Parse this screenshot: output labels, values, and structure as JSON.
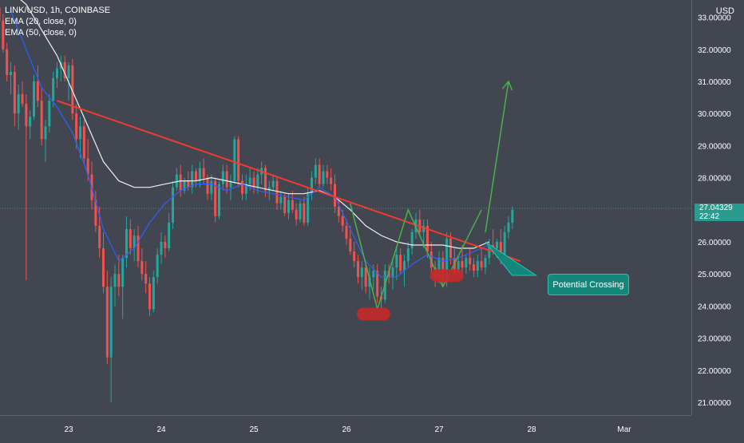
{
  "header": {
    "symbol": "LINK/USD, 1h, COINBASE",
    "ema20": "EMA (20, close, 0)",
    "ema50": "EMA (50, close, 0)",
    "currency": "USD"
  },
  "price_tag": {
    "price": "27.04329",
    "countdown": "22:42"
  },
  "callout": {
    "label": "Potential Crossing"
  },
  "colors": {
    "background": "#414650",
    "up_candle": "#26a69a",
    "down_candle": "#ef5350",
    "trendline": "#f23b2f",
    "pattern": "#4caf50",
    "ema_fast": "#2962ff",
    "ema_slow": "#f0f0f0",
    "support_marker": "#c62828",
    "callout_bg": "#15877a"
  },
  "chart_data": {
    "type": "candlestick",
    "x_labels": [
      "23",
      "24",
      "25",
      "26",
      "27",
      "28",
      "Mar"
    ],
    "x_label_positions": [
      0,
      24,
      48,
      72,
      96,
      120,
      144
    ],
    "ylim": [
      20.8,
      33.7
    ],
    "y_ticks": [
      "21.00000",
      "22.00000",
      "23.00000",
      "24.00000",
      "25.00000",
      "26.00000",
      "27.00000",
      "28.00000",
      "29.00000",
      "30.00000",
      "31.00000",
      "32.00000",
      "33.00000"
    ],
    "y_tick_values": [
      21,
      22,
      23,
      24,
      25,
      26,
      27,
      28,
      29,
      30,
      31,
      32,
      33
    ],
    "last_price": 27.04329,
    "x_start": -18,
    "candles": [
      [
        33.3,
        33.6,
        32.8,
        32.9
      ],
      [
        32.9,
        33.1,
        31.9,
        32.0
      ],
      [
        32.0,
        32.2,
        31.0,
        31.2
      ],
      [
        31.2,
        31.6,
        30.6,
        31.3
      ],
      [
        31.3,
        31.5,
        29.6,
        30.0
      ],
      [
        30.0,
        30.9,
        29.5,
        30.6
      ],
      [
        30.6,
        31.0,
        30.2,
        30.3
      ],
      [
        30.3,
        30.6,
        24.8,
        29.6
      ],
      [
        29.6,
        30.1,
        29.2,
        29.9
      ],
      [
        29.9,
        31.2,
        29.8,
        31.0
      ],
      [
        31.0,
        31.5,
        30.2,
        30.4
      ],
      [
        30.4,
        30.8,
        29.0,
        29.2
      ],
      [
        29.2,
        29.8,
        28.5,
        29.6
      ],
      [
        29.6,
        30.6,
        29.4,
        30.4
      ],
      [
        30.4,
        31.3,
        30.2,
        31.1
      ],
      [
        31.1,
        31.6,
        30.8,
        31.4
      ],
      [
        31.4,
        31.8,
        31.0,
        31.6
      ],
      [
        31.6,
        31.8,
        31.0,
        31.1
      ],
      [
        31.1,
        31.6,
        30.4,
        31.5
      ],
      [
        31.5,
        31.7,
        29.8,
        30.0
      ],
      [
        30.0,
        30.3,
        28.9,
        29.2
      ],
      [
        29.2,
        29.9,
        28.6,
        29.6
      ],
      [
        29.6,
        29.8,
        28.4,
        28.6
      ],
      [
        28.6,
        29.2,
        27.9,
        28.1
      ],
      [
        28.1,
        28.5,
        27.0,
        27.3
      ],
      [
        27.3,
        27.6,
        26.3,
        26.5
      ],
      [
        26.5,
        27.1,
        25.5,
        25.8
      ],
      [
        25.8,
        26.3,
        24.4,
        24.6
      ],
      [
        24.6,
        25.1,
        22.2,
        22.4
      ],
      [
        22.4,
        24.9,
        21.0,
        24.6
      ],
      [
        24.6,
        25.3,
        24.0,
        25.0
      ],
      [
        25.0,
        25.6,
        24.3,
        24.6
      ],
      [
        24.6,
        25.6,
        23.6,
        25.5
      ],
      [
        25.5,
        26.8,
        25.2,
        26.4
      ],
      [
        26.4,
        26.7,
        25.6,
        25.8
      ],
      [
        25.8,
        26.4,
        25.4,
        26.2
      ],
      [
        26.2,
        26.5,
        25.2,
        25.4
      ],
      [
        25.4,
        25.8,
        24.8,
        25.0
      ],
      [
        25.0,
        25.4,
        24.4,
        24.7
      ],
      [
        24.7,
        24.9,
        23.7,
        23.9
      ],
      [
        23.9,
        25.1,
        23.8,
        24.9
      ],
      [
        24.9,
        25.8,
        24.7,
        25.6
      ],
      [
        25.6,
        26.3,
        25.3,
        26.0
      ],
      [
        26.0,
        26.2,
        25.5,
        25.8
      ],
      [
        25.8,
        26.9,
        25.7,
        26.6
      ],
      [
        26.6,
        27.9,
        26.4,
        27.7
      ],
      [
        27.7,
        28.3,
        27.6,
        28.1
      ],
      [
        28.1,
        28.4,
        27.4,
        27.6
      ],
      [
        27.6,
        28.0,
        27.5,
        27.9
      ],
      [
        27.9,
        28.2,
        27.6,
        27.7
      ],
      [
        27.7,
        28.4,
        27.5,
        28.2
      ],
      [
        28.2,
        28.3,
        27.7,
        27.9
      ],
      [
        27.9,
        28.5,
        27.7,
        28.3
      ],
      [
        28.3,
        28.6,
        27.8,
        28.0
      ],
      [
        28.0,
        28.1,
        27.3,
        27.5
      ],
      [
        27.5,
        28.1,
        27.3,
        27.9
      ],
      [
        27.9,
        28.0,
        26.6,
        26.8
      ],
      [
        26.8,
        27.9,
        26.7,
        27.8
      ],
      [
        27.8,
        28.4,
        27.6,
        28.2
      ],
      [
        28.2,
        28.4,
        27.5,
        27.7
      ],
      [
        27.7,
        28.1,
        27.3,
        27.9
      ],
      [
        27.9,
        29.3,
        27.8,
        29.2
      ],
      [
        29.2,
        29.3,
        27.7,
        27.9
      ],
      [
        27.9,
        28.1,
        27.3,
        27.5
      ],
      [
        27.5,
        28.1,
        27.3,
        27.8
      ],
      [
        27.8,
        28.3,
        27.6,
        28.0
      ],
      [
        28.0,
        28.2,
        27.5,
        27.7
      ],
      [
        27.7,
        28.3,
        27.5,
        28.1
      ],
      [
        28.1,
        28.5,
        27.8,
        28.3
      ],
      [
        28.3,
        28.4,
        27.4,
        27.6
      ],
      [
        27.6,
        27.9,
        27.3,
        27.7
      ],
      [
        27.7,
        28.1,
        27.6,
        27.9
      ],
      [
        27.9,
        28.0,
        27.0,
        27.2
      ],
      [
        27.2,
        27.6,
        27.0,
        27.4
      ],
      [
        27.4,
        27.5,
        26.8,
        26.9
      ],
      [
        26.9,
        27.5,
        26.7,
        27.3
      ],
      [
        27.3,
        27.6,
        26.9,
        27.0
      ],
      [
        27.0,
        27.2,
        26.5,
        26.7
      ],
      [
        26.7,
        27.3,
        26.6,
        27.2
      ],
      [
        27.2,
        27.4,
        26.5,
        26.6
      ],
      [
        26.6,
        27.7,
        26.5,
        27.5
      ],
      [
        27.5,
        28.2,
        27.3,
        28.0
      ],
      [
        28.0,
        28.6,
        27.8,
        28.4
      ],
      [
        28.4,
        28.6,
        27.7,
        27.8
      ],
      [
        27.8,
        28.4,
        27.7,
        28.2
      ],
      [
        28.2,
        28.4,
        27.8,
        28.0
      ],
      [
        28.0,
        28.3,
        27.6,
        27.8
      ],
      [
        27.8,
        28.1,
        26.9,
        27.1
      ],
      [
        27.1,
        27.3,
        26.6,
        26.8
      ],
      [
        26.8,
        27.0,
        26.3,
        26.5
      ],
      [
        26.5,
        26.7,
        25.9,
        26.1
      ],
      [
        26.1,
        26.5,
        25.6,
        25.7
      ],
      [
        25.7,
        26.0,
        25.2,
        25.4
      ],
      [
        25.4,
        25.6,
        24.7,
        24.9
      ],
      [
        24.9,
        25.4,
        24.5,
        25.2
      ],
      [
        25.2,
        25.3,
        24.4,
        24.6
      ],
      [
        24.6,
        25.2,
        24.2,
        24.9
      ],
      [
        24.9,
        25.3,
        24.5,
        25.1
      ],
      [
        25.1,
        25.3,
        24.1,
        24.3
      ],
      [
        24.3,
        24.6,
        23.9,
        24.2
      ],
      [
        24.2,
        25.3,
        24.1,
        25.1
      ],
      [
        25.1,
        25.3,
        24.7,
        24.9
      ],
      [
        24.9,
        25.4,
        24.5,
        25.2
      ],
      [
        25.2,
        25.8,
        24.8,
        25.6
      ],
      [
        25.6,
        25.8,
        25.0,
        25.1
      ],
      [
        25.1,
        25.6,
        24.6,
        25.4
      ],
      [
        25.4,
        26.0,
        25.2,
        25.8
      ],
      [
        25.8,
        26.4,
        25.6,
        26.3
      ],
      [
        26.3,
        26.9,
        26.1,
        26.7
      ],
      [
        26.7,
        27.0,
        26.2,
        26.3
      ],
      [
        26.3,
        26.7,
        25.8,
        26.5
      ],
      [
        26.5,
        26.7,
        25.5,
        25.7
      ],
      [
        25.7,
        26.0,
        25.0,
        25.2
      ],
      [
        25.2,
        25.4,
        24.6,
        24.9
      ],
      [
        24.9,
        25.7,
        24.7,
        25.5
      ],
      [
        25.5,
        25.7,
        24.6,
        24.8
      ],
      [
        24.8,
        26.3,
        24.6,
        26.1
      ],
      [
        26.1,
        26.3,
        25.3,
        25.5
      ],
      [
        25.5,
        25.8,
        24.8,
        25.0
      ],
      [
        25.0,
        25.6,
        24.9,
        25.4
      ],
      [
        25.4,
        25.9,
        25.0,
        25.2
      ],
      [
        25.2,
        25.6,
        25.0,
        25.5
      ],
      [
        25.5,
        25.8,
        25.1,
        25.3
      ],
      [
        25.3,
        25.5,
        24.9,
        25.1
      ],
      [
        25.1,
        25.6,
        24.9,
        25.4
      ],
      [
        25.4,
        25.8,
        25.1,
        25.2
      ],
      [
        25.2,
        25.6,
        25.0,
        25.5
      ],
      [
        25.5,
        26.1,
        25.3,
        25.9
      ],
      [
        25.9,
        26.4,
        25.6,
        25.8
      ],
      [
        25.8,
        26.1,
        25.5,
        26.0
      ],
      [
        26.0,
        26.4,
        25.3,
        25.5
      ],
      [
        25.5,
        26.5,
        25.3,
        26.3
      ],
      [
        26.3,
        26.8,
        26.1,
        26.6
      ],
      [
        26.6,
        27.1,
        26.4,
        27.0
      ]
    ],
    "ema20": [
      [
        -15,
        33.2
      ],
      [
        -11,
        32.0
      ],
      [
        -7,
        30.8
      ],
      [
        -3,
        30.2
      ],
      [
        1,
        29.4
      ],
      [
        5,
        28.1
      ],
      [
        9,
        26.4
      ],
      [
        13,
        25.4
      ],
      [
        17,
        25.8
      ],
      [
        21,
        26.6
      ],
      [
        25,
        27.2
      ],
      [
        29,
        27.6
      ],
      [
        33,
        27.8
      ],
      [
        37,
        27.8
      ],
      [
        41,
        27.6
      ],
      [
        45,
        27.8
      ],
      [
        49,
        27.6
      ],
      [
        53,
        27.5
      ],
      [
        57,
        27.4
      ],
      [
        61,
        27.3
      ],
      [
        65,
        27.7
      ],
      [
        69,
        27.4
      ],
      [
        73,
        26.4
      ],
      [
        77,
        25.4
      ],
      [
        81,
        24.9
      ],
      [
        85,
        24.9
      ],
      [
        89,
        25.3
      ],
      [
        93,
        25.6
      ],
      [
        97,
        25.4
      ],
      [
        101,
        25.5
      ],
      [
        105,
        25.7
      ],
      [
        109,
        25.9
      ]
    ],
    "ema50": [
      [
        -15,
        33.8
      ],
      [
        -11,
        33.4
      ],
      [
        -7,
        32.6
      ],
      [
        -3,
        31.8
      ],
      [
        1,
        30.7
      ],
      [
        5,
        29.6
      ],
      [
        9,
        28.5
      ],
      [
        13,
        27.9
      ],
      [
        17,
        27.7
      ],
      [
        21,
        27.7
      ],
      [
        25,
        27.8
      ],
      [
        29,
        27.9
      ],
      [
        33,
        27.9
      ],
      [
        37,
        28.0
      ],
      [
        41,
        27.9
      ],
      [
        45,
        27.8
      ],
      [
        49,
        27.7
      ],
      [
        53,
        27.6
      ],
      [
        57,
        27.5
      ],
      [
        61,
        27.5
      ],
      [
        65,
        27.6
      ],
      [
        69,
        27.4
      ],
      [
        73,
        27.0
      ],
      [
        77,
        26.5
      ],
      [
        81,
        26.2
      ],
      [
        85,
        26.0
      ],
      [
        89,
        25.9
      ],
      [
        93,
        25.9
      ],
      [
        97,
        25.9
      ],
      [
        101,
        25.8
      ],
      [
        105,
        25.8
      ],
      [
        109,
        26.0
      ]
    ],
    "trendline": [
      [
        -3,
        30.4
      ],
      [
        117,
        25.4
      ]
    ],
    "pattern_line": [
      [
        73,
        27.2
      ],
      [
        80,
        23.9
      ],
      [
        88,
        27.0
      ],
      [
        97,
        24.6
      ],
      [
        107,
        27.0
      ]
    ],
    "projection_arrow": [
      [
        108,
        26.3
      ],
      [
        114,
        31.0
      ]
    ],
    "callout_pointer": [
      [
        108,
        26.0
      ],
      [
        117,
        25.3
      ]
    ],
    "support_markers": [
      [
        79,
        23.75
      ],
      [
        98,
        24.95
      ]
    ]
  }
}
